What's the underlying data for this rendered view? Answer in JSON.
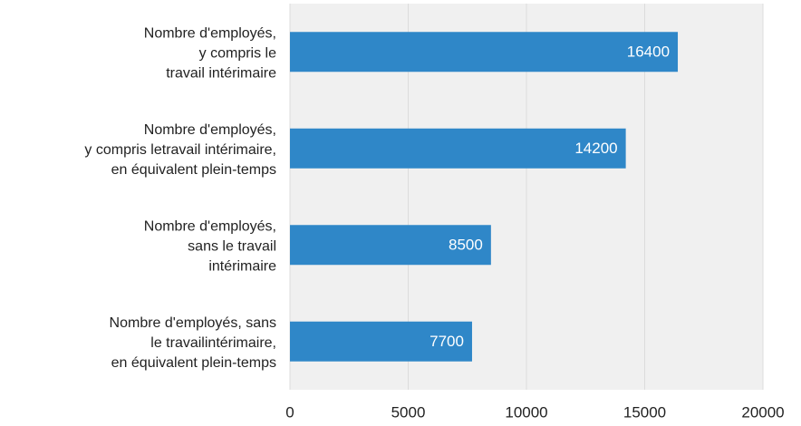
{
  "chart_data": {
    "type": "bar",
    "orientation": "horizontal",
    "categories": [
      [
        "Nombre d'employés,",
        "y compris le",
        "travail intérimaire"
      ],
      [
        "Nombre d'employés,",
        "y compris letravail intérimaire,",
        "en équivalent plein-temps"
      ],
      [
        "Nombre d'employés,",
        "sans le travail",
        "intérimaire"
      ],
      [
        "Nombre d'employés, sans",
        "le travailintérimaire,",
        "en équivalent plein-temps"
      ]
    ],
    "values": [
      16400,
      14200,
      8500,
      7700
    ],
    "color": "#2f87c8",
    "xlim": [
      0,
      20000
    ],
    "xticks": [
      0,
      5000,
      10000,
      15000,
      20000
    ],
    "grid": true
  }
}
